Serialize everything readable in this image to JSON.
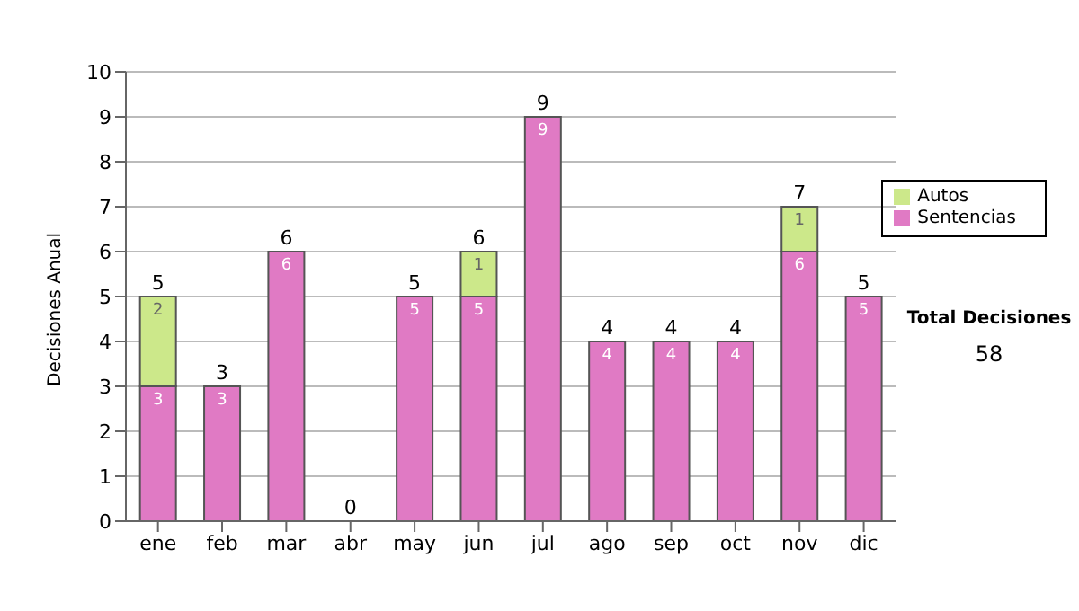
{
  "chart_data": {
    "type": "bar",
    "stacked": true,
    "ylabel": "Decisiones Anual",
    "categories": [
      "ene",
      "feb",
      "mar",
      "abr",
      "may",
      "jun",
      "jul",
      "ago",
      "sep",
      "oct",
      "nov",
      "dic"
    ],
    "series": [
      {
        "name": "Sentencias",
        "color": "#e07ac4",
        "values": [
          3,
          3,
          6,
          0,
          5,
          5,
          9,
          4,
          4,
          4,
          6,
          5
        ],
        "value_labels": [
          "3",
          "3",
          "6",
          null,
          "5",
          "5",
          "9",
          "4",
          "4",
          "4",
          "6",
          "5"
        ]
      },
      {
        "name": "Autos",
        "color": "#cce88a",
        "values": [
          2,
          0,
          0,
          0,
          0,
          1,
          0,
          0,
          0,
          0,
          1,
          0
        ],
        "value_labels": [
          "2",
          null,
          null,
          null,
          null,
          "1",
          null,
          null,
          null,
          null,
          "1",
          null
        ]
      }
    ],
    "totals": [
      "5",
      "3",
      "6",
      "0",
      "5",
      "6",
      "9",
      "4",
      "4",
      "4",
      "7",
      "5"
    ],
    "ylim": [
      0,
      10
    ],
    "yticks": [
      0,
      1,
      2,
      3,
      4,
      5,
      6,
      7,
      8,
      9,
      10
    ],
    "grid": "y",
    "legend": "right",
    "annotations": [
      "Total Decisiones",
      "58"
    ]
  }
}
